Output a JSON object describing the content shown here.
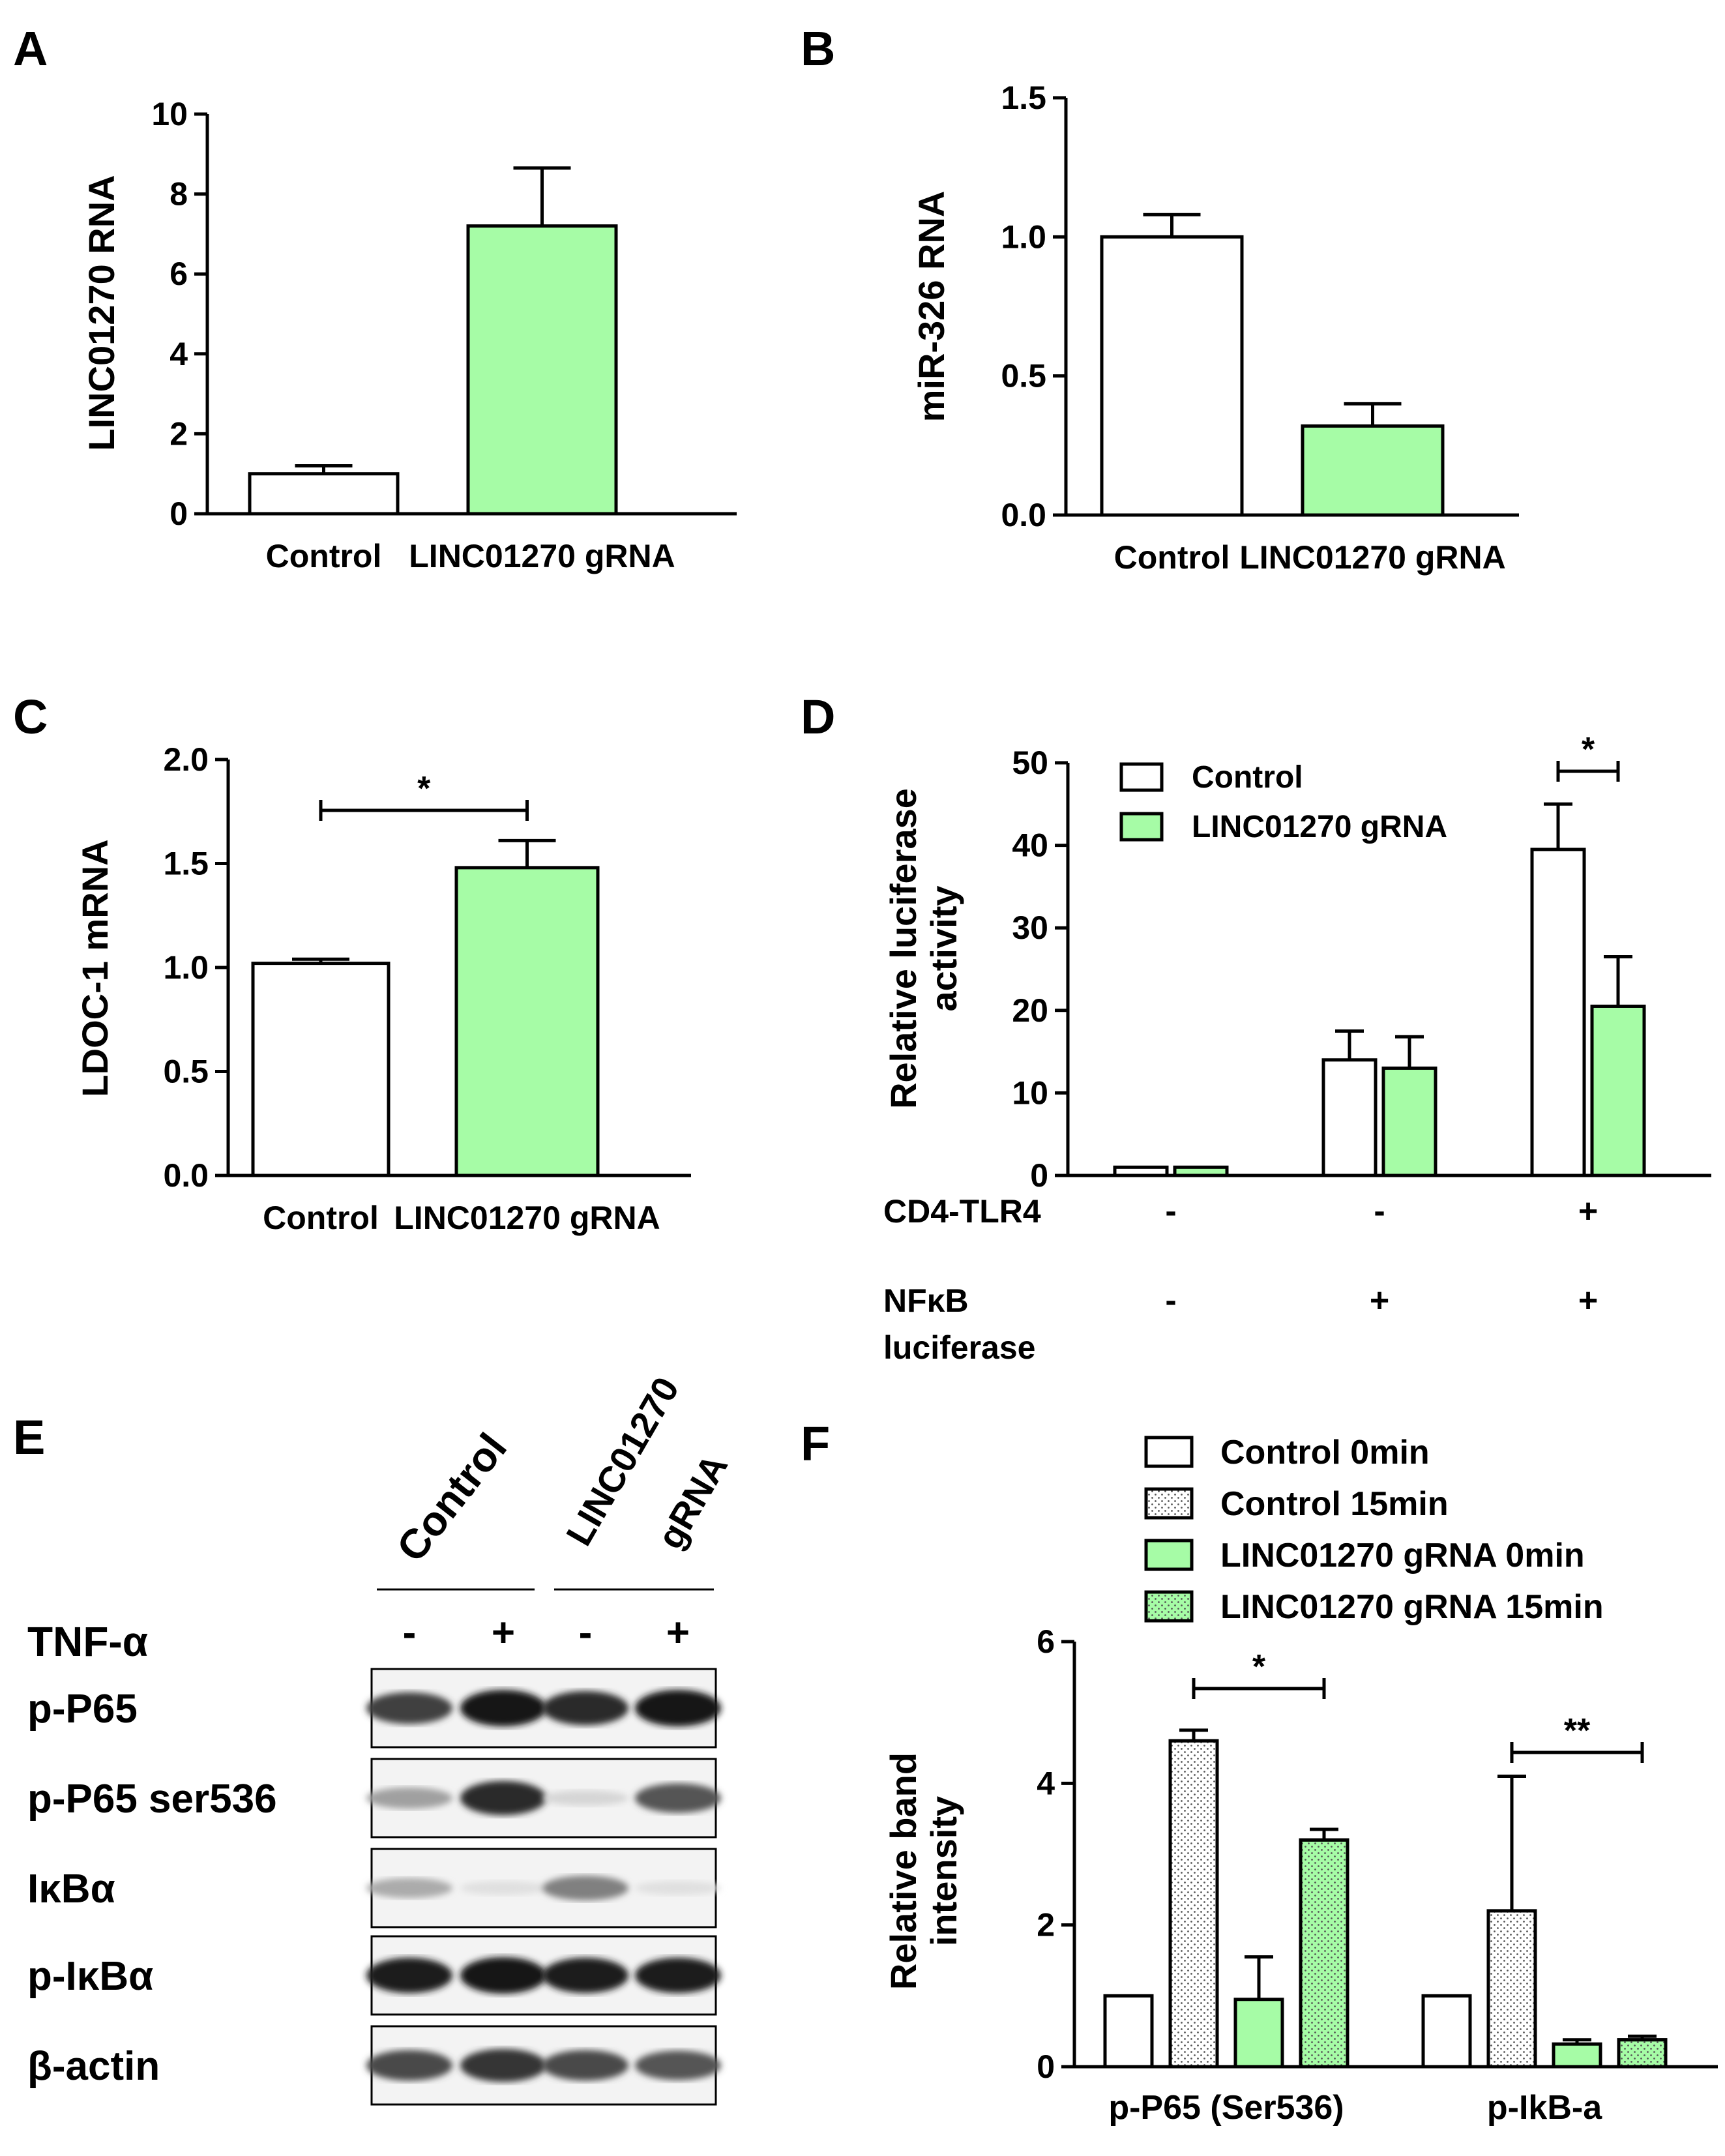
{
  "colors": {
    "green": "#a6fca6",
    "white": "#ffffff",
    "black": "#000000"
  },
  "panel_labels": [
    "A",
    "B",
    "C",
    "D",
    "E",
    "F"
  ],
  "chart_data": [
    {
      "id": "A",
      "type": "bar",
      "ylabel": "LINC01270 RNA",
      "categories": [
        "Control",
        "LINC01270 gRNA"
      ],
      "values": [
        1.0,
        7.2
      ],
      "errors": [
        0.2,
        1.45
      ],
      "fills": [
        "white",
        "green"
      ],
      "ylim": [
        0,
        10
      ],
      "yticks": [
        "0",
        "2",
        "4",
        "6",
        "8",
        "10"
      ]
    },
    {
      "id": "B",
      "type": "bar",
      "ylabel": "miR-326 RNA",
      "categories": [
        "Control",
        "LINC01270 gRNA"
      ],
      "values": [
        1.0,
        0.32
      ],
      "errors": [
        0.08,
        0.08
      ],
      "fills": [
        "white",
        "green"
      ],
      "ylim": [
        0,
        1.5
      ],
      "yticks": [
        "0.0",
        "0.5",
        "1.0",
        "1.5"
      ]
    },
    {
      "id": "C",
      "type": "bar",
      "ylabel": "LDOC-1 mRNA",
      "categories": [
        "Control",
        "LINC01270 gRNA"
      ],
      "values": [
        1.02,
        1.48
      ],
      "errors": [
        0.02,
        0.13
      ],
      "fills": [
        "white",
        "green"
      ],
      "ylim": [
        0,
        2.0
      ],
      "yticks": [
        "0.0",
        "0.5",
        "1.0",
        "1.5",
        "2.0"
      ],
      "significance": [
        {
          "from": 0,
          "to": 1,
          "label": "*"
        }
      ]
    },
    {
      "id": "D",
      "type": "bar",
      "ylabel": [
        "Relative luciferase",
        "activity"
      ],
      "legend": [
        "Control",
        "LINC01270 gRNA"
      ],
      "series": [
        {
          "values": [
            1,
            14,
            39.5
          ],
          "errors": [
            0,
            3.5,
            5.5
          ],
          "fill": "white"
        },
        {
          "values": [
            1,
            13,
            20.5
          ],
          "errors": [
            0,
            3.8,
            6.0
          ],
          "fill": "green"
        }
      ],
      "ylim": [
        0,
        50
      ],
      "yticks": [
        "0",
        "10",
        "20",
        "30",
        "40",
        "50"
      ],
      "conditions": [
        {
          "label": "CD4-TLR4",
          "values": [
            "-",
            "-",
            "+"
          ]
        },
        {
          "label": [
            "NFκB",
            "luciferase"
          ],
          "values": [
            "-",
            "+",
            "+"
          ]
        }
      ],
      "significance": [
        {
          "group": 2,
          "label": "*"
        }
      ]
    },
    {
      "id": "F",
      "type": "bar",
      "ylabel": [
        "Relative band",
        "intensity"
      ],
      "categories": [
        "p-P65 (Ser536)",
        "p-IkB-a"
      ],
      "legend": [
        "Control 0min",
        "Control 15min",
        "LINC01270 gRNA 0min",
        "LINC01270 gRNA 15min"
      ],
      "series": [
        {
          "name": "Control 0min",
          "values": [
            1.0,
            1.0
          ],
          "errors": [
            0,
            0
          ],
          "fill": "white",
          "dotted": false
        },
        {
          "name": "Control 15min",
          "values": [
            4.6,
            2.2
          ],
          "errors": [
            0.15,
            1.9
          ],
          "fill": "white",
          "dotted": true
        },
        {
          "name": "LINC01270 gRNA 0min",
          "values": [
            0.95,
            0.32
          ],
          "errors": [
            0.6,
            0.06
          ],
          "fill": "green",
          "dotted": false
        },
        {
          "name": "LINC01270 gRNA 15min",
          "values": [
            3.2,
            0.38
          ],
          "errors": [
            0.15,
            0.05
          ],
          "fill": "green",
          "dotted": true
        }
      ],
      "ylim": [
        0,
        6
      ],
      "yticks": [
        "0",
        "2",
        "4",
        "6"
      ],
      "significance": [
        {
          "group": 0,
          "label": "*"
        },
        {
          "group": 1,
          "label": "**"
        }
      ]
    }
  ],
  "western_blot": {
    "header_labels": [
      "Control",
      "LINC01270",
      "gRNA"
    ],
    "treatment_label": "TNF-α",
    "treatment_signs": [
      "-",
      "+",
      "-",
      "+"
    ],
    "rows": [
      {
        "label": "p-P65",
        "bands": [
          0.8,
          1.0,
          0.9,
          1.0
        ]
      },
      {
        "label": "p-P65 ser536",
        "bands": [
          0.35,
          0.9,
          0.1,
          0.7
        ]
      },
      {
        "label": "IκBα",
        "bands": [
          0.3,
          0.05,
          0.5,
          0.05
        ]
      },
      {
        "label": "p-IκBα",
        "bands": [
          0.95,
          1.0,
          0.95,
          0.95
        ]
      },
      {
        "label": "β-actin",
        "bands": [
          0.75,
          0.85,
          0.75,
          0.7
        ]
      }
    ]
  }
}
